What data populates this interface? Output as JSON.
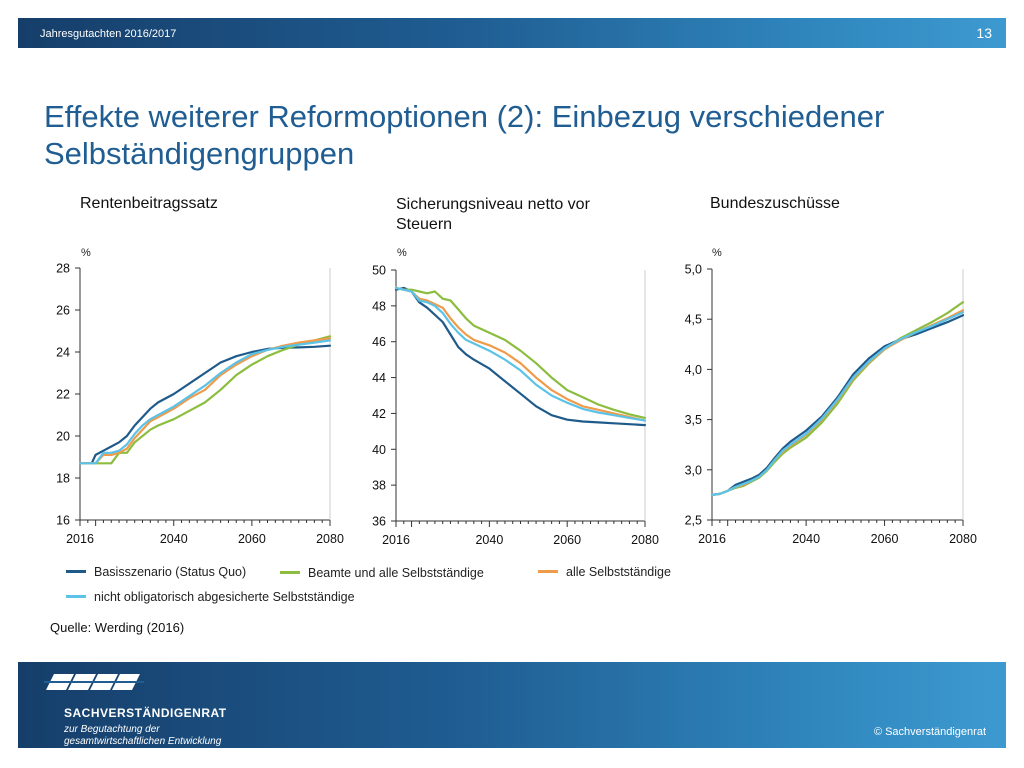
{
  "header": {
    "doc": "Jahresgutachten  2016/2017",
    "page": "13"
  },
  "title": "Effekte weiterer Reformoptionen (2): Einbezug verschiedener Selbständigengruppen",
  "colors": {
    "basis": "#1f5b8a",
    "beamte": "#8cbd3f",
    "alle": "#ef9b4b",
    "nicht_oblig": "#5bc3e8"
  },
  "legend": [
    {
      "label": "Basisszenario (Status Quo)",
      "color": "#1f5b8a"
    },
    {
      "label": "Beamte und alle Selbstständige",
      "color": "#8cbd3f"
    },
    {
      "label": "alle Selbstständige",
      "color": "#ef9b4b"
    },
    {
      "label": "nicht obligatorisch abgesicherte Selbstständige",
      "color": "#5bc3e8"
    }
  ],
  "source": "Quelle: Werding (2016)",
  "footer": {
    "org": "SACHVERSTÄNDIGENRAT",
    "sub1": "zur Begutachtung der",
    "sub2": "gesamtwirtschaftlichen Entwicklung",
    "copyright": "© Sachverständigenrat"
  },
  "chart_data": [
    {
      "type": "line",
      "title": "Rentenbeitragssatz",
      "ylabel": "%",
      "xlim": [
        2016,
        2080
      ],
      "ylim": [
        16,
        28
      ],
      "yticks": [
        "16",
        "18",
        "20",
        "22",
        "24",
        "26",
        "28"
      ],
      "xticks": [
        "2016",
        "2040",
        "2060",
        "2080"
      ],
      "x": [
        2016,
        2019,
        2020,
        2022,
        2024,
        2026,
        2028,
        2030,
        2032,
        2034,
        2036,
        2040,
        2044,
        2048,
        2052,
        2056,
        2060,
        2064,
        2068,
        2072,
        2076,
        2080
      ],
      "series": [
        {
          "name": "Basisszenario (Status Quo)",
          "values": [
            18.7,
            18.7,
            19.1,
            19.3,
            19.5,
            19.7,
            20.0,
            20.5,
            20.9,
            21.3,
            21.6,
            22.0,
            22.5,
            23.0,
            23.5,
            23.8,
            24.0,
            24.15,
            24.2,
            24.22,
            24.25,
            24.3
          ]
        },
        {
          "name": "Beamte und alle Selbstständige",
          "values": [
            18.7,
            18.7,
            18.7,
            18.7,
            18.7,
            19.2,
            19.2,
            19.7,
            20.0,
            20.3,
            20.5,
            20.8,
            21.2,
            21.6,
            22.2,
            22.9,
            23.4,
            23.8,
            24.1,
            24.35,
            24.55,
            24.75
          ]
        },
        {
          "name": "alle Selbstständige",
          "values": [
            18.7,
            18.7,
            18.7,
            19.1,
            19.1,
            19.2,
            19.4,
            19.9,
            20.3,
            20.7,
            20.9,
            21.3,
            21.8,
            22.2,
            22.9,
            23.4,
            23.8,
            24.1,
            24.3,
            24.45,
            24.55,
            24.65
          ]
        },
        {
          "name": "nicht obligatorisch abgesicherte Selbstständige",
          "values": [
            18.7,
            18.7,
            18.7,
            19.2,
            19.2,
            19.3,
            19.6,
            20.1,
            20.5,
            20.8,
            21.0,
            21.4,
            21.9,
            22.4,
            23.0,
            23.5,
            23.9,
            24.1,
            24.25,
            24.35,
            24.45,
            24.55
          ]
        }
      ]
    },
    {
      "type": "line",
      "title": "Sicherungsniveau netto vor Steuern",
      "ylabel": "%",
      "xlim": [
        2016,
        2080
      ],
      "ylim": [
        36,
        50
      ],
      "yticks": [
        "36",
        "38",
        "40",
        "42",
        "44",
        "46",
        "48",
        "50"
      ],
      "xticks": [
        "2016",
        "2040",
        "2060",
        "2080"
      ],
      "x": [
        2016,
        2018,
        2020,
        2022,
        2024,
        2026,
        2028,
        2030,
        2032,
        2034,
        2036,
        2040,
        2044,
        2048,
        2052,
        2056,
        2060,
        2064,
        2068,
        2072,
        2076,
        2080
      ],
      "series": [
        {
          "name": "Basisszenario (Status Quo)",
          "values": [
            48.9,
            49.0,
            48.8,
            48.2,
            47.9,
            47.5,
            47.1,
            46.4,
            45.7,
            45.3,
            45.0,
            44.5,
            43.8,
            43.1,
            42.4,
            41.9,
            41.65,
            41.55,
            41.5,
            41.45,
            41.4,
            41.35
          ]
        },
        {
          "name": "Beamte und alle Selbstständige",
          "values": [
            49.0,
            48.9,
            48.9,
            48.8,
            48.7,
            48.8,
            48.4,
            48.3,
            47.8,
            47.3,
            46.9,
            46.5,
            46.1,
            45.5,
            44.8,
            44.0,
            43.3,
            42.9,
            42.5,
            42.2,
            41.95,
            41.75
          ]
        },
        {
          "name": "alle Selbstständige",
          "values": [
            49.0,
            48.9,
            48.8,
            48.4,
            48.3,
            48.1,
            47.9,
            47.3,
            46.8,
            46.4,
            46.1,
            45.8,
            45.4,
            44.8,
            44.0,
            43.3,
            42.8,
            42.4,
            42.2,
            42.0,
            41.8,
            41.6
          ]
        },
        {
          "name": "nicht obligatorisch abgesicherte Selbstständige",
          "values": [
            49.0,
            48.9,
            48.8,
            48.3,
            48.2,
            48.0,
            47.6,
            47.0,
            46.5,
            46.1,
            45.9,
            45.5,
            45.0,
            44.4,
            43.6,
            43.0,
            42.6,
            42.25,
            42.05,
            41.9,
            41.75,
            41.6
          ]
        }
      ]
    },
    {
      "type": "line",
      "title": "Bundeszuschüsse",
      "ylabel": "%",
      "xlim": [
        2016,
        2080
      ],
      "ylim": [
        2.5,
        5.0
      ],
      "yticks": [
        "2,5",
        "3,0",
        "3,5",
        "4,0",
        "4,5",
        "5,0"
      ],
      "xticks": [
        "2016",
        "2040",
        "2060",
        "2080"
      ],
      "x": [
        2016,
        2018,
        2020,
        2022,
        2024,
        2026,
        2028,
        2030,
        2032,
        2034,
        2036,
        2040,
        2044,
        2048,
        2052,
        2056,
        2060,
        2064,
        2068,
        2072,
        2076,
        2080
      ],
      "series": [
        {
          "name": "Basisszenario (Status Quo)",
          "values": [
            2.75,
            2.76,
            2.79,
            2.85,
            2.88,
            2.91,
            2.95,
            3.02,
            3.12,
            3.21,
            3.28,
            3.39,
            3.53,
            3.72,
            3.95,
            4.11,
            4.23,
            4.3,
            4.35,
            4.41,
            4.47,
            4.54
          ]
        },
        {
          "name": "Beamte und alle Selbstständige",
          "values": [
            2.75,
            2.76,
            2.79,
            2.82,
            2.84,
            2.88,
            2.92,
            2.99,
            3.08,
            3.16,
            3.22,
            3.32,
            3.47,
            3.66,
            3.89,
            4.06,
            4.2,
            4.31,
            4.39,
            4.47,
            4.56,
            4.67
          ]
        },
        {
          "name": "alle Selbstständige",
          "values": [
            2.75,
            2.76,
            2.79,
            2.83,
            2.85,
            2.89,
            2.93,
            3.0,
            3.1,
            3.18,
            3.24,
            3.35,
            3.5,
            3.69,
            3.91,
            4.07,
            4.2,
            4.29,
            4.37,
            4.44,
            4.51,
            4.59
          ]
        },
        {
          "name": "nicht obligatorisch abgesicherte Selbstständige",
          "values": [
            2.75,
            2.76,
            2.79,
            2.83,
            2.86,
            2.89,
            2.93,
            3.0,
            3.1,
            3.19,
            3.25,
            3.36,
            3.51,
            3.7,
            3.92,
            4.08,
            4.21,
            4.3,
            4.37,
            4.43,
            4.5,
            4.57
          ]
        }
      ]
    }
  ]
}
